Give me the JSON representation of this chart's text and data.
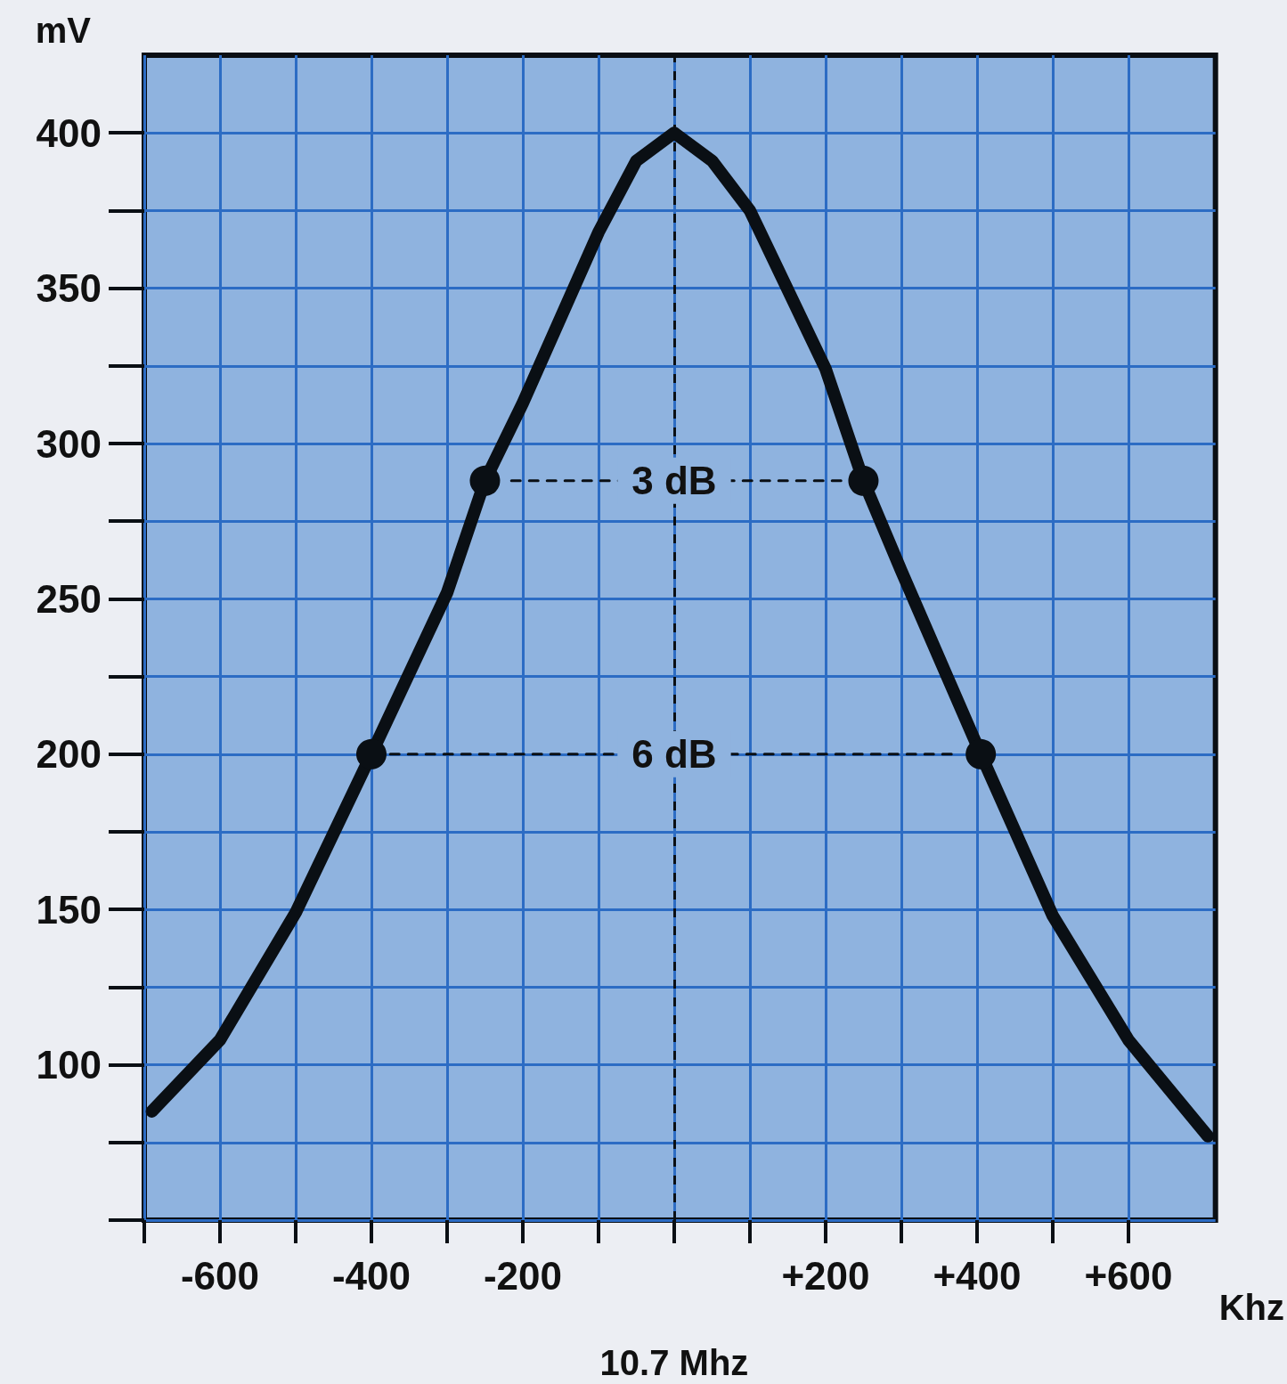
{
  "chart_data": {
    "type": "line",
    "xlabel": "Khz",
    "ylabel": "mV",
    "xlim": [
      -700,
      715
    ],
    "ylim": [
      50,
      425
    ],
    "xticks": [
      {
        "value": -700,
        "label": null
      },
      -600,
      {
        "value": -500,
        "label": null
      },
      -400,
      {
        "value": -300,
        "label": null
      },
      -200,
      {
        "value": -100,
        "label": null
      },
      {
        "value": 0,
        "label": null
      },
      {
        "value": 100,
        "label": null
      },
      {
        "value": 200,
        "label": "+200"
      },
      {
        "value": 300,
        "label": null
      },
      {
        "value": 400,
        "label": "+400"
      },
      {
        "value": 500,
        "label": null
      },
      {
        "value": 600,
        "label": "+600"
      }
    ],
    "yticks": [
      {
        "value": 50,
        "label": null
      },
      {
        "value": 75,
        "label": null
      },
      100,
      {
        "value": 125,
        "label": null
      },
      150,
      {
        "value": 175,
        "label": null
      },
      200,
      {
        "value": 225,
        "label": null
      },
      250,
      {
        "value": 275,
        "label": null
      },
      300,
      {
        "value": 325,
        "label": null
      },
      350,
      {
        "value": 375,
        "label": null
      },
      400
    ],
    "grid": true,
    "series": [
      {
        "color": "#0a0f14",
        "marker": "none",
        "line_style": "solid",
        "x": [
          -690,
          -600,
          -500,
          -400,
          -300,
          -250,
          -200,
          -100,
          -50,
          0,
          50,
          100,
          200,
          250,
          300,
          405,
          500,
          600,
          705
        ],
        "values": [
          85,
          108,
          149,
          200,
          252,
          288,
          313,
          368,
          391,
          400,
          391,
          375,
          324,
          288,
          259,
          200,
          148,
          108,
          77
        ]
      },
      {
        "color": "#0a0f14",
        "marker": "none",
        "line_style": "dashed",
        "x": [
          -215,
          225
        ],
        "values": [
          288,
          288
        ]
      },
      {
        "color": "#0a0f14",
        "marker": "none",
        "line_style": "dashed",
        "x": [
          -375,
          375
        ],
        "values": [
          200,
          200
        ]
      },
      {
        "type": "scatter",
        "color": "#0a0f14",
        "marker": "circle",
        "x": [
          -250,
          250,
          -400,
          405
        ],
        "values": [
          288,
          288,
          200,
          200
        ]
      }
    ],
    "ref_lines": [
      {
        "axis": "x",
        "value": 0,
        "label": null,
        "color": "#0a0f14",
        "line_style": "dashed"
      }
    ],
    "annotations": [
      {
        "text": "3 dB",
        "x": 0,
        "y": 288
      },
      {
        "text": "6 dB",
        "x": 0,
        "y": 200
      },
      "10.7 Mhz"
    ]
  }
}
